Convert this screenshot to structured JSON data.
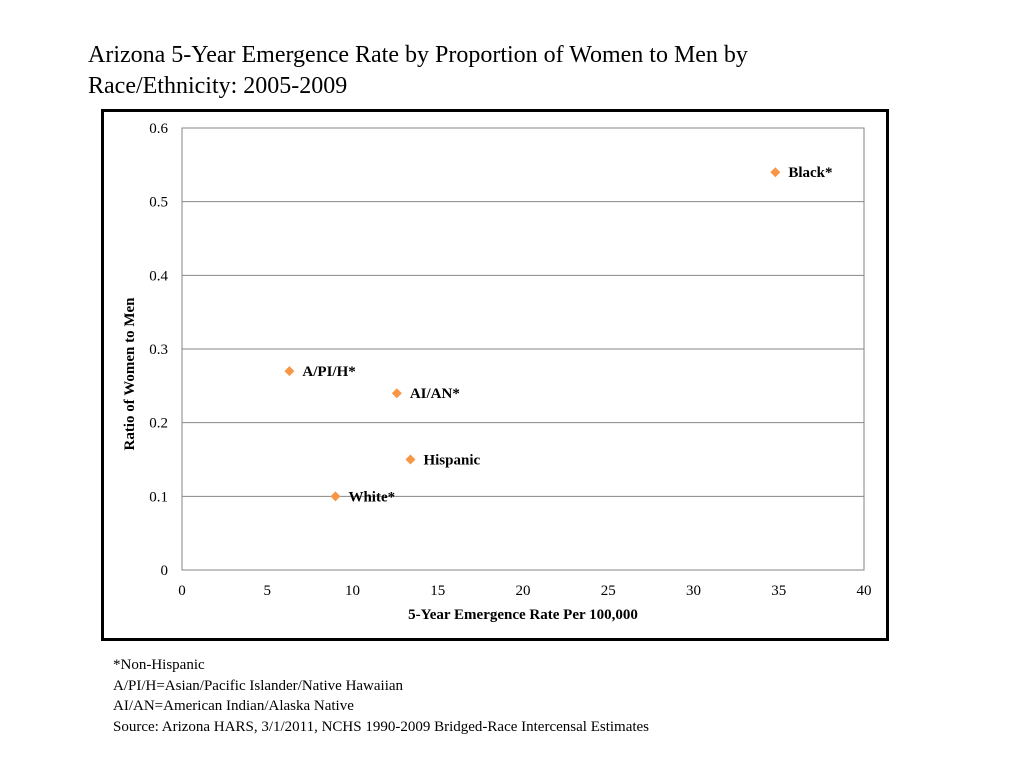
{
  "title": "Arizona 5-Year Emergence Rate by Proportion of Women to Men by Race/Ethnicity:  2005-2009",
  "colors": {
    "marker": "#F79646",
    "gridline": "#868686",
    "frame": "#000000"
  },
  "chart_data": {
    "type": "scatter",
    "title": "Arizona 5-Year Emergence Rate by Proportion of Women to Men by Race/Ethnicity:  2005-2009",
    "xlabel": "5-Year Emergence Rate Per 100,000",
    "ylabel": "Ratio of Women to Men",
    "xlim": [
      0,
      40
    ],
    "ylim": [
      0,
      0.6
    ],
    "x_ticks": [
      0,
      5,
      10,
      15,
      20,
      25,
      30,
      35,
      40
    ],
    "y_ticks": [
      0,
      0.1,
      0.2,
      0.3,
      0.4,
      0.5,
      0.6
    ],
    "x_tick_labels": [
      "0",
      "5",
      "10",
      "15",
      "20",
      "25",
      "30",
      "35",
      "40"
    ],
    "y_tick_labels": [
      "0",
      "0.1",
      "0.2",
      "0.3",
      "0.4",
      "0.5",
      "0.6"
    ],
    "grid": "horizontal",
    "marker": "diamond",
    "points": [
      {
        "label": "Black*",
        "x": 34.8,
        "y": 0.54
      },
      {
        "label": "A/PI/H*",
        "x": 6.3,
        "y": 0.27
      },
      {
        "label": "AI/AN*",
        "x": 12.6,
        "y": 0.24
      },
      {
        "label": "Hispanic",
        "x": 13.4,
        "y": 0.15
      },
      {
        "label": "White*",
        "x": 9.0,
        "y": 0.1
      }
    ]
  },
  "footnotes": [
    "*Non-Hispanic",
    "A/PI/H=Asian/Pacific Islander/Native Hawaiian",
    "AI/AN=American Indian/Alaska Native",
    "Source: Arizona HARS, 3/1/2011, NCHS 1990-2009 Bridged-Race Intercensal Estimates"
  ]
}
